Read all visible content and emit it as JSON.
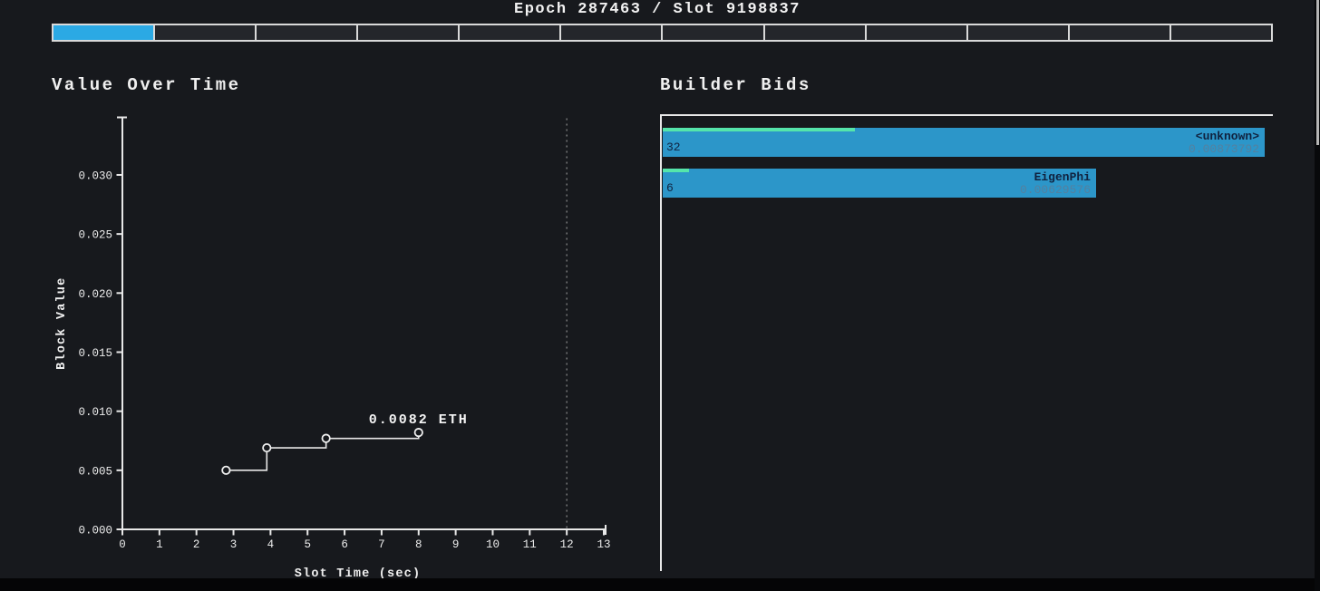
{
  "header": {
    "title": "Epoch 287463 / Slot 9198837"
  },
  "progress_bar": {
    "total_segments": 12,
    "filled_segments": 1
  },
  "colors": {
    "background": "#17191d",
    "progress_fill": "#2ba9e4",
    "bar_blue": "#2c96c9",
    "accent_green": "#55e5ab",
    "axis_white": "#e8e8e8",
    "bar_name_text": "#10223f",
    "bar_value_text": "#54809f",
    "dotted_line": "#909090"
  },
  "chart_data": [
    {
      "id": "value_over_time",
      "type": "line",
      "step_mode": "post",
      "title": "Value Over Time",
      "xlabel": "Slot Time (sec)",
      "ylabel": "Block Value",
      "x": [
        2.8,
        3.9,
        5.5,
        8.0
      ],
      "y": [
        0.005,
        0.0069,
        0.0077,
        0.0082
      ],
      "annotation": {
        "text": "0.0082 ETH",
        "x": 8.0,
        "y": 0.0093
      },
      "xticks": [
        0,
        1,
        2,
        3,
        4,
        5,
        6,
        7,
        8,
        9,
        10,
        11,
        12,
        13
      ],
      "ytick_labels": [
        "0.000",
        "0.005",
        "0.010",
        "0.015",
        "0.020",
        "0.025",
        "0.030"
      ],
      "ytick_values": [
        0,
        0.005,
        0.01,
        0.015,
        0.02,
        0.025,
        0.03
      ],
      "xlim": [
        0,
        13.05
      ],
      "ylim": [
        0,
        0.0349
      ],
      "grid": false,
      "legend": "none",
      "vline": {
        "x": 12,
        "style": "dotted"
      }
    },
    {
      "id": "builder_bids",
      "type": "bar",
      "orientation": "horizontal",
      "title": "Builder Bids",
      "xlim": [
        0,
        0.00873792
      ],
      "bars": [
        {
          "name": "<unknown>",
          "value_label": "0.00873792",
          "value": 0.00873792,
          "count": 32
        },
        {
          "name": "EigenPhi",
          "value_label": "0.00629576",
          "value": 0.00629576,
          "count": 6
        }
      ]
    }
  ]
}
